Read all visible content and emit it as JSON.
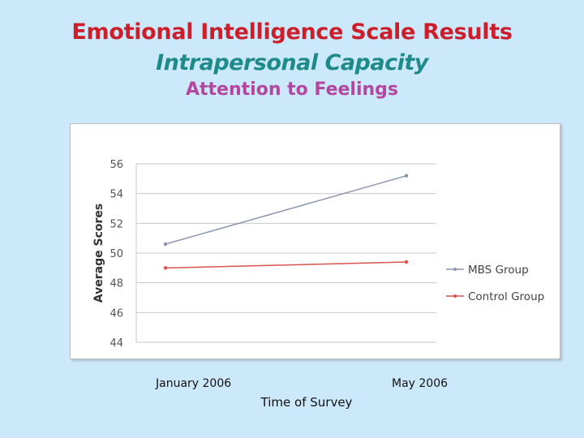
{
  "slide": {
    "title": "Emotional Intelligence Scale Results",
    "subtitle": "Intrapersonal Capacity",
    "subsubtitle": "Attention to Feelings"
  },
  "chart_data": {
    "type": "line",
    "categories": [
      "January 2006",
      "May 2006"
    ],
    "series": [
      {
        "name": "MBS Group",
        "values": [
          50.6,
          55.2
        ],
        "color": "#8a96ad"
      },
      {
        "name": "Control Group",
        "values": [
          49.0,
          49.4
        ],
        "color": "#d9534f"
      }
    ],
    "xlabel": "Time of Survey",
    "ylabel": "Average Scores",
    "ylim": [
      44,
      56
    ],
    "yticks": [
      44,
      46,
      48,
      50,
      52,
      54,
      56
    ],
    "grid": true,
    "legend": "right"
  }
}
